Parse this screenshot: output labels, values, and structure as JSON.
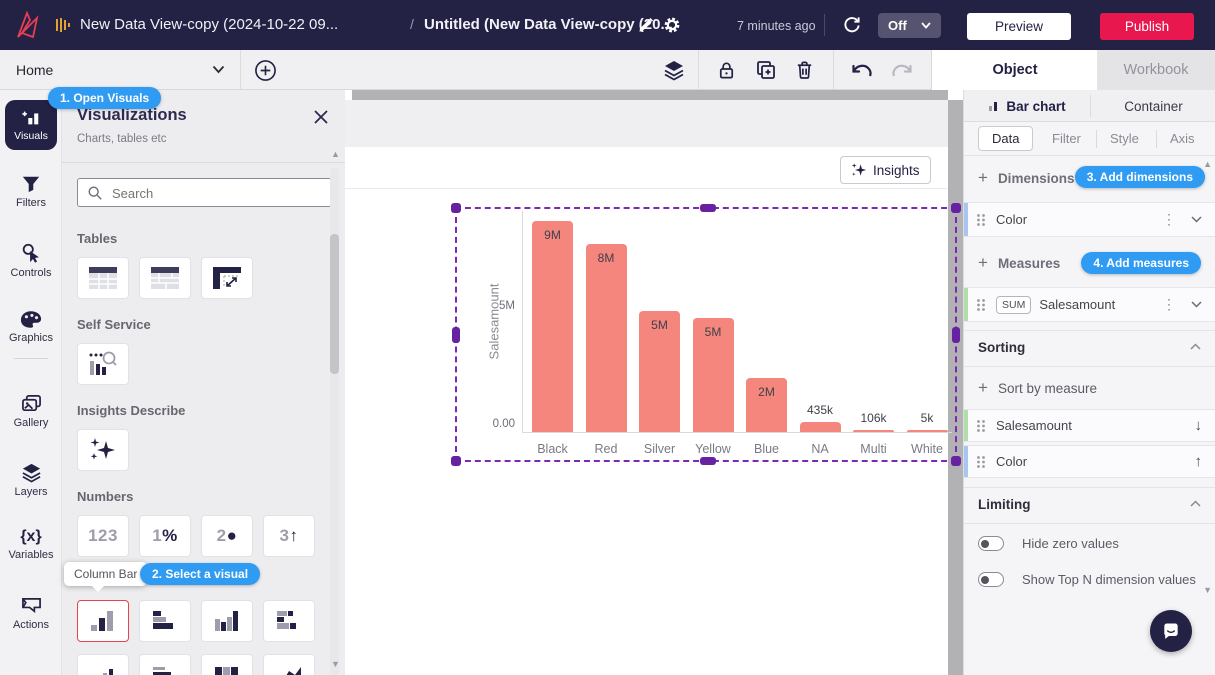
{
  "topbar": {
    "breadcrumb": {
      "parent": "New Data View-copy (2024-10-22 09...",
      "separator": "/",
      "current": "Untitled (New Data View-copy (20..."
    },
    "saved_status": "7 minutes ago",
    "auto_refresh": {
      "value": "Off"
    },
    "preview_label": "Preview",
    "publish_label": "Publish"
  },
  "toolbar": {
    "home_label": "Home",
    "object_tab": "Object",
    "workbook_tab": "Workbook"
  },
  "sidebar": {
    "items": [
      {
        "label": "Visuals"
      },
      {
        "label": "Filters"
      },
      {
        "label": "Controls"
      },
      {
        "label": "Graphics"
      },
      {
        "label": "Gallery"
      },
      {
        "label": "Layers"
      },
      {
        "label": "Variables"
      },
      {
        "label": "Actions"
      }
    ]
  },
  "visuals_panel": {
    "step_badge_1": "1. Open Visuals",
    "title": "Visualizations",
    "subtitle": "Charts, tables etc",
    "search_placeholder": "Search",
    "section_tables": "Tables",
    "section_self_service": "Self Service",
    "section_insights": "Insights Describe",
    "section_numbers": "Numbers",
    "numbers_tiles": [
      {
        "num": "123",
        "sym": ""
      },
      {
        "num": "1",
        "sym": "%"
      },
      {
        "num": "2",
        "sym": "●"
      },
      {
        "num": "3",
        "sym": "↑"
      }
    ],
    "tooltip": "Column Bar",
    "step_badge_2": "2. Select a visual"
  },
  "canvas": {
    "insights_label": "Insights"
  },
  "chart_data": {
    "type": "bar",
    "categories": [
      "Black",
      "Red",
      "Silver",
      "Yellow",
      "Blue",
      "NA",
      "Multi",
      "White"
    ],
    "values": [
      9000000,
      8000000,
      5160000,
      4870000,
      2300000,
      435000,
      106000,
      5000
    ],
    "value_labels": [
      "9M",
      "8M",
      "5M",
      "5M",
      "2M",
      "435k",
      "106k",
      "5k"
    ],
    "title": "",
    "xlabel": "",
    "ylabel": "Salesamount",
    "yticks": [
      {
        "label": "5M",
        "value": 5000000
      },
      {
        "label": "0.00",
        "value": 0
      }
    ],
    "ylim": [
      0,
      9300000
    ],
    "grid": false,
    "legend": false,
    "bar_color": "#f5867d"
  },
  "object_panel": {
    "type_tabs": [
      {
        "label": "Bar chart"
      },
      {
        "label": "Container"
      }
    ],
    "config_tabs": [
      "Data",
      "Filter",
      "Style",
      "Axis"
    ],
    "dimensions": {
      "add_label": "Dimensions",
      "badge": "3. Add dimensions",
      "rows": [
        {
          "label": "Color"
        }
      ]
    },
    "measures": {
      "add_label": "Measures",
      "badge": "4. Add measures",
      "rows": [
        {
          "agg": "SUM",
          "label": "Salesamount"
        }
      ]
    },
    "sorting": {
      "header": "Sorting",
      "add_label": "Sort by measure",
      "rows": [
        {
          "label": "Salesamount",
          "direction": "desc",
          "arrow": "↓"
        },
        {
          "label": "Color",
          "direction": "asc",
          "arrow": "↑"
        }
      ]
    },
    "limiting": {
      "header": "Limiting",
      "toggles": [
        {
          "label": "Hide zero values",
          "on": false
        },
        {
          "label": "Show Top N dimension values",
          "on": false
        }
      ]
    }
  },
  "colors": {
    "topbar_navy": "#232144",
    "brand_red": "#e73e54",
    "publish_red": "#e8184f",
    "badge_blue": "#2f9bf2",
    "bar_salmon": "#f5867d",
    "selection_purple": "#6722a2",
    "dimension_accent": "#a9c6f1",
    "measure_accent": "#b2dcab"
  }
}
